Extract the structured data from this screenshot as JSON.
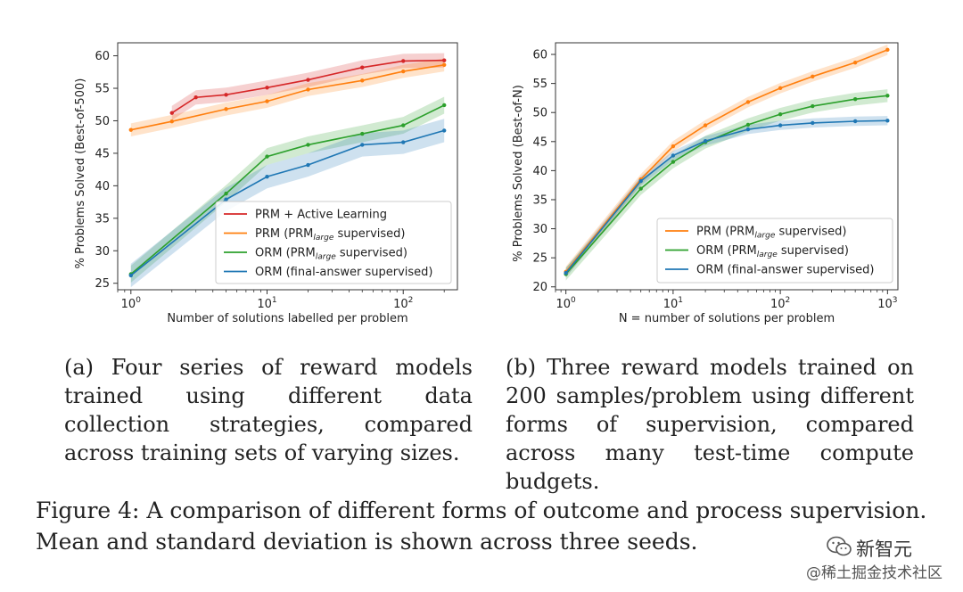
{
  "colors": {
    "red": "#d62728",
    "orange": "#ff7f0e",
    "green": "#2ca02c",
    "blue": "#1f77b4",
    "axis": "#333333"
  },
  "chart_data": [
    {
      "type": "line",
      "xscale": "log",
      "xlim": [
        0.8,
        250
      ],
      "ylim": [
        24,
        62
      ],
      "xlabel": "Number of solutions labelled per problem",
      "ylabel": "% Problems Solved (Best-of-500)",
      "xticks": [
        {
          "value": 1,
          "base": "10",
          "exp": "0"
        },
        {
          "value": 10,
          "base": "10",
          "exp": "1"
        },
        {
          "value": 100,
          "base": "10",
          "exp": "2"
        }
      ],
      "yticks": [
        25,
        30,
        35,
        40,
        45,
        50,
        55,
        60
      ],
      "legend_position": "bottom-right",
      "series": [
        {
          "name": "PRM + Active Learning",
          "name_parts": [
            "PRM + Active Learning"
          ],
          "color_key": "red",
          "x": [
            2,
            3,
            5,
            10,
            20,
            50,
            100,
            200
          ],
          "y": [
            51.2,
            53.6,
            54.0,
            55.1,
            56.3,
            58.2,
            59.2,
            59.3
          ],
          "band": 1.1
        },
        {
          "name": "PRM (PRMlarge supervised)",
          "name_parts": [
            "PRM (PRM",
            "large",
            " supervised)"
          ],
          "color_key": "orange",
          "x": [
            1,
            2,
            5,
            10,
            20,
            50,
            100,
            200
          ],
          "y": [
            48.6,
            49.9,
            51.8,
            53.0,
            54.8,
            56.2,
            57.6,
            58.6
          ],
          "band": 1.0
        },
        {
          "name": "ORM (PRMlarge supervised)",
          "name_parts": [
            "ORM (PRM",
            "large",
            " supervised)"
          ],
          "color_key": "green",
          "x": [
            1,
            5,
            10,
            20,
            50,
            100,
            200
          ],
          "y": [
            26.4,
            38.8,
            44.5,
            46.3,
            48.0,
            49.3,
            52.4
          ],
          "band": 1.3
        },
        {
          "name": "ORM (final-answer supervised)",
          "name_parts": [
            "ORM (final-answer supervised)"
          ],
          "color_key": "blue",
          "x": [
            1,
            5,
            10,
            20,
            50,
            100,
            200
          ],
          "y": [
            26.2,
            37.9,
            41.4,
            43.2,
            46.3,
            46.7,
            48.5
          ],
          "band": 1.8
        }
      ]
    },
    {
      "type": "line",
      "xscale": "log",
      "xlim": [
        0.8,
        1250
      ],
      "ylim": [
        19.5,
        62
      ],
      "xlabel": "N = number of solutions per problem",
      "ylabel": "% Problems Solved (Best-of-N)",
      "xticks": [
        {
          "value": 1,
          "base": "10",
          "exp": "0"
        },
        {
          "value": 10,
          "base": "10",
          "exp": "1"
        },
        {
          "value": 100,
          "base": "10",
          "exp": "2"
        },
        {
          "value": 1000,
          "base": "10",
          "exp": "3"
        }
      ],
      "yticks": [
        20,
        25,
        30,
        35,
        40,
        45,
        50,
        55,
        60
      ],
      "legend_position": "bottom-right",
      "series": [
        {
          "name": "PRM (PRMlarge supervised)",
          "name_parts": [
            "PRM (PRM",
            "large",
            " supervised)"
          ],
          "color_key": "orange",
          "x": [
            1,
            5,
            10,
            20,
            50,
            100,
            200,
            500,
            1000
          ],
          "y": [
            22.6,
            38.5,
            44.2,
            47.8,
            51.8,
            54.2,
            56.2,
            58.6,
            60.8
          ],
          "band": 0.9
        },
        {
          "name": "ORM (PRMlarge supervised)",
          "name_parts": [
            "ORM (PRM",
            "large",
            " supervised)"
          ],
          "color_key": "green",
          "x": [
            1,
            5,
            10,
            20,
            50,
            100,
            200,
            500,
            1000
          ],
          "y": [
            22.2,
            36.9,
            41.5,
            44.9,
            47.9,
            49.7,
            51.1,
            52.3,
            52.9
          ],
          "band": 1.1
        },
        {
          "name": "ORM (final-answer supervised)",
          "name_parts": [
            "ORM (final-answer supervised)"
          ],
          "color_key": "blue",
          "x": [
            1,
            5,
            10,
            20,
            50,
            100,
            200,
            500,
            1000
          ],
          "y": [
            22.4,
            38.2,
            42.6,
            45.1,
            47.1,
            47.8,
            48.2,
            48.5,
            48.6
          ],
          "band": 0.8
        }
      ]
    }
  ],
  "captions": {
    "a": "(a) Four series of reward models trained using different data collection strategies, compared across training sets of varying sizes.",
    "b": "(b) Three reward models trained on 200 samples/problem using different forms of supervision, compared across many test-time compute budgets.",
    "figure": "Figure 4: A comparison of different forms of outcome and process supervision. Mean and standard deviation is shown across three seeds."
  },
  "watermark": {
    "icon": "wechat-icon",
    "line1": "新智元",
    "line2": "@稀土掘金技术社区"
  }
}
